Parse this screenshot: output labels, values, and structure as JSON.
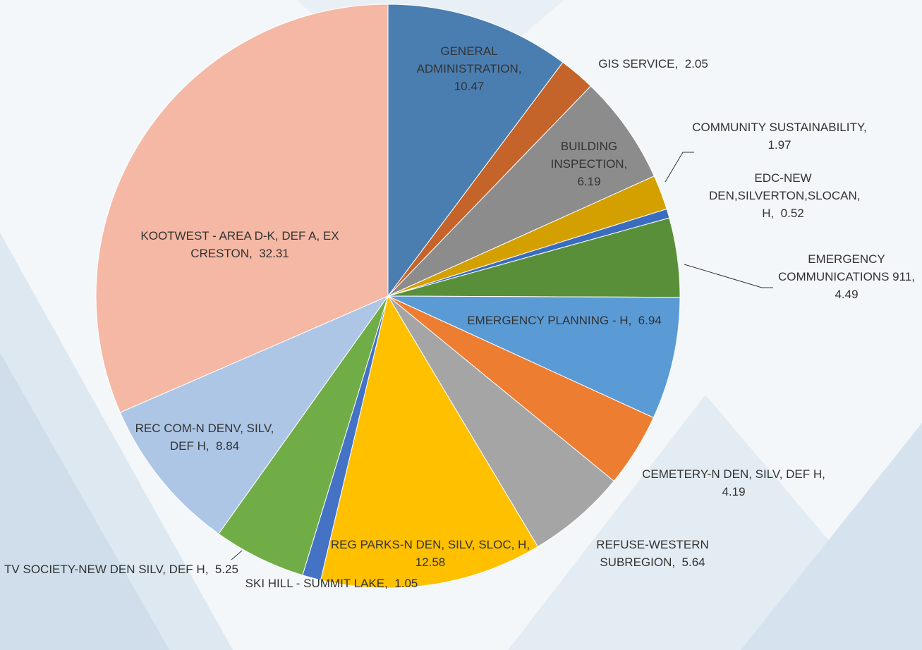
{
  "chart_data": {
    "type": "pie",
    "label_separator": ",  ",
    "categories": [
      "GENERAL ADMINISTRATION",
      "GIS SERVICE",
      "BUILDING INSPECTION",
      "COMMUNITY SUSTAINABILITY",
      "EDC-NEW DEN,SILVERTON,SLOCAN, H",
      "EMERGENCY COMMUNICATIONS 911",
      "EMERGENCY PLANNING - H",
      "CEMETERY-N DEN, SILV, DEF H",
      "REFUSE-WESTERN SUBREGION",
      "REG PARKS-N DEN, SILV, SLOC, H",
      "SKI HILL - SUMMIT LAKE",
      "TV SOCIETY-NEW DEN SILV, DEF H",
      "REC COM-N DENV, SILV, DEF H",
      "KOOTWEST - AREA D-K, DEF A, EX CRESTON"
    ],
    "values": [
      10.47,
      2.05,
      6.19,
      1.97,
      0.52,
      4.49,
      6.94,
      4.19,
      5.64,
      12.58,
      1.05,
      5.25,
      8.84,
      32.31
    ],
    "colors": [
      "#4a7eb0",
      "#c5642a",
      "#8c8c8c",
      "#d4a000",
      "#3a6cc0",
      "#5a8f3a",
      "#5b9bd5",
      "#ed7d31",
      "#a5a5a5",
      "#ffc000",
      "#4472c4",
      "#70ad47",
      "#adc6e6",
      "#f4b8a4"
    ]
  }
}
